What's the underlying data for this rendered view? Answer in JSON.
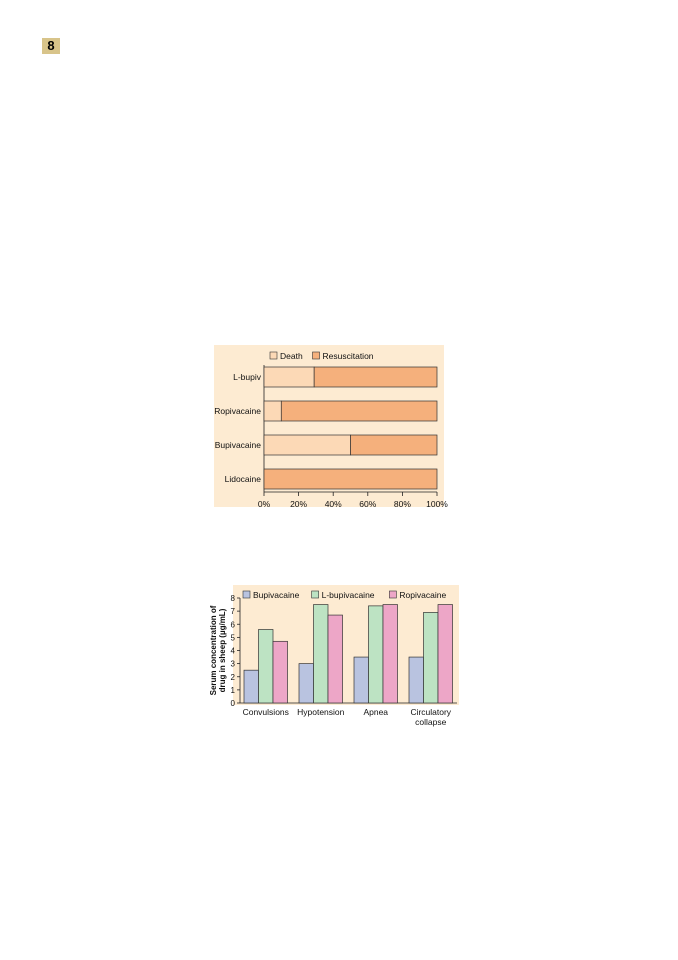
{
  "page": {
    "badge": "8"
  },
  "colors": {
    "panel_bg": "#fdebd2",
    "death": "#fcd9b6",
    "resuscitation": "#f5b07c",
    "bupivacaine": "#b9c3e0",
    "l_bupivacaine": "#bde3c3",
    "ropivacaine": "#eda6c7"
  },
  "chart_data": [
    {
      "type": "bar",
      "orientation": "horizontal",
      "stacked": true,
      "categories": [
        "L-bupiv",
        "Ropivacaine",
        "Bupivacaine",
        "Lidocaine"
      ],
      "series": [
        {
          "name": "Death",
          "values": [
            29,
            10,
            50,
            0
          ]
        },
        {
          "name": "Resuscitation",
          "values": [
            71,
            90,
            50,
            100
          ]
        }
      ],
      "xlim": [
        0,
        100
      ],
      "xticks": [
        "0%",
        "20%",
        "40%",
        "60%",
        "80%",
        "100%"
      ],
      "legend": "top-left",
      "grid": false
    },
    {
      "type": "bar",
      "categories": [
        "Convulsions",
        "Hypotension",
        "Apnea",
        "Circulatory collapse"
      ],
      "series": [
        {
          "name": "Bupivacaine",
          "values": [
            2.5,
            3.0,
            3.5,
            3.5
          ]
        },
        {
          "name": "L-bupivacaine",
          "values": [
            5.6,
            7.5,
            7.4,
            6.9
          ]
        },
        {
          "name": "Ropivacaine",
          "values": [
            4.7,
            6.7,
            7.5,
            7.5
          ]
        }
      ],
      "ylabel": "Serum concentration of drug in sheep (µg/mL)",
      "ylim": [
        0,
        8
      ],
      "yticks": [
        "0",
        "1",
        "2",
        "3",
        "4",
        "5",
        "6",
        "7",
        "8"
      ],
      "legend": "top",
      "grid": false
    }
  ]
}
